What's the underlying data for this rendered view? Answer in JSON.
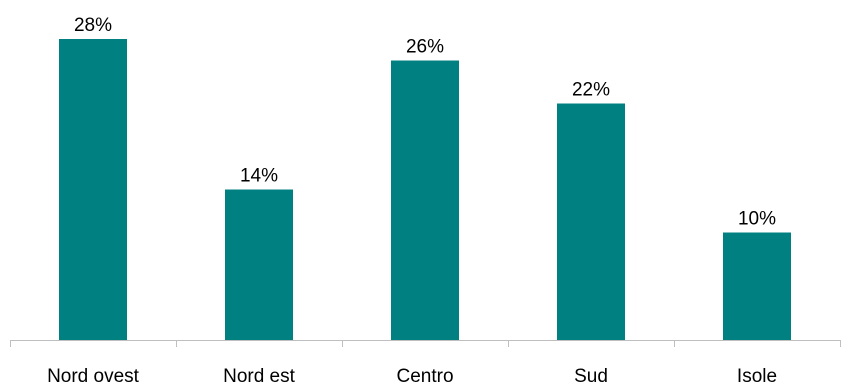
{
  "chart_data": {
    "type": "bar",
    "title": "",
    "xlabel": "",
    "ylabel": "",
    "categories": [
      "Nord ovest",
      "Nord est",
      "Centro",
      "Sud",
      "Isole"
    ],
    "values": [
      28,
      14,
      26,
      22,
      10
    ],
    "data_labels": [
      "28%",
      "14%",
      "26%",
      "22%",
      "10%"
    ],
    "unit": "%",
    "ylim": [
      0,
      32
    ],
    "grid": false,
    "legend": "none",
    "bar_color": "#008080"
  }
}
